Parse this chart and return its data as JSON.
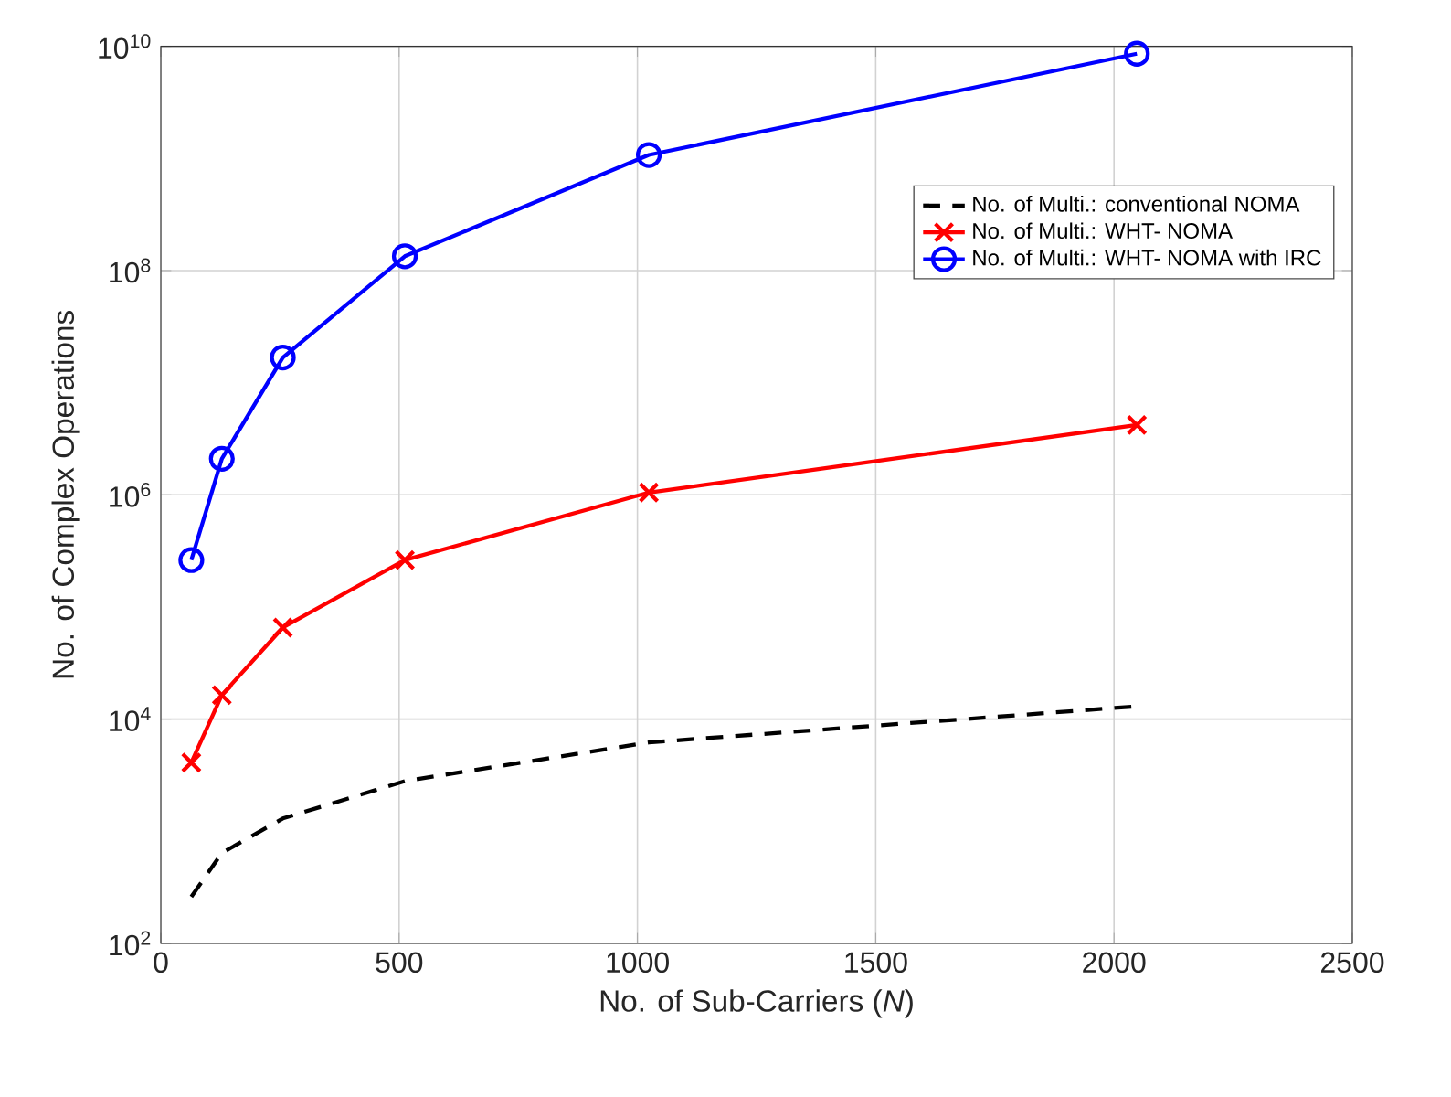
{
  "chart_data": {
    "type": "line",
    "xlabel": "No. of Sub-Carriers (*N*)",
    "ylabel": "No. of Complex Operations",
    "x": [
      64,
      128,
      256,
      512,
      1024,
      2048
    ],
    "series": [
      {
        "name": "No. of Multi.: conventional NOMA",
        "color": "#000000",
        "marker": "none",
        "line_style": "dashed",
        "values": [
          260,
          640,
          1300,
          2800,
          6200,
          13000
        ]
      },
      {
        "name": "No. of Multi.: WHT- NOMA",
        "color": "#ff0000",
        "marker": "cross",
        "line_style": "solid",
        "values": [
          4096,
          16384,
          65536,
          262144,
          1048576,
          4194304
        ]
      },
      {
        "name": "No. of Multi.: WHT- NOMA with IRC",
        "color": "#0000ff",
        "marker": "circle",
        "line_style": "solid",
        "values": [
          262144,
          2097152,
          16777216,
          134217728,
          1073741824,
          8589934592
        ]
      }
    ],
    "xlim": [
      0,
      2500
    ],
    "xticks": [
      0,
      500,
      1000,
      1500,
      2000,
      2500
    ],
    "ylim": [
      100,
      10000000000
    ],
    "yticks": [
      {
        "value": 100,
        "label": "10$^{2}$"
      },
      {
        "value": 10000,
        "label": "10$^{4}$"
      },
      {
        "value": 1000000,
        "label": "10$^{6}$"
      },
      {
        "value": 100000000,
        "label": "10$^{8}$"
      },
      {
        "value": 10000000000,
        "label": "10$^{10}$"
      }
    ],
    "log": "y",
    "grid": true,
    "legend": "top right"
  }
}
